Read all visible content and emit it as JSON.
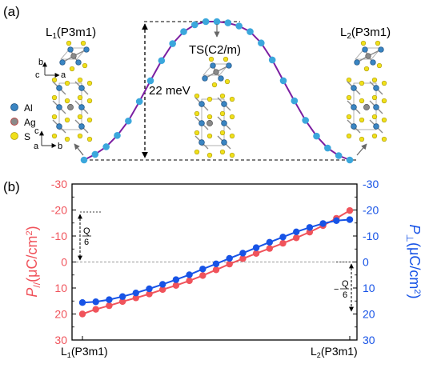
{
  "chart_data": [
    {
      "type": "line",
      "panel_label": "(a)",
      "x": [
        0,
        1,
        2,
        3,
        4,
        5,
        6,
        7,
        8,
        9,
        10,
        11,
        12,
        13,
        14,
        15,
        16,
        17,
        18,
        19,
        20,
        21,
        22,
        23,
        24
      ],
      "series": [
        {
          "name": "",
          "color": "#7b1fa2",
          "marker_color": "#3ba7dc",
          "values": [
            0.0,
            0.9,
            2.1,
            3.9,
            6.2,
            9.3,
            12.6,
            15.8,
            18.5,
            20.4,
            21.5,
            22.0,
            22.0,
            21.8,
            21.3,
            20.4,
            18.6,
            15.9,
            12.6,
            9.4,
            6.3,
            3.8,
            1.9,
            0.7,
            0.0
          ]
        }
      ],
      "ylim": [
        0,
        22
      ],
      "title": "",
      "xlabel": "",
      "ylabel": "",
      "annotations": {
        "barrier": "22 meV",
        "left_state": "L1(P3m1)",
        "transition_state": "TS(C2/m)",
        "right_state": "L2(P3m1)"
      },
      "legend": [
        {
          "label": "Al",
          "color": "#3a85c2"
        },
        {
          "label": "Ag",
          "color": "#8a8a8a"
        },
        {
          "label": "S",
          "color": "#f0e01a"
        }
      ],
      "axis_letters": {
        "top_b": "b",
        "top_c": "c",
        "top_a": "a",
        "bot_c": "c",
        "bot_a": "a",
        "bot_b": "b"
      }
    },
    {
      "type": "line",
      "panel_label": "(b)",
      "categories": [
        "L1(P3m1)",
        "L2(P3m1)"
      ],
      "x": [
        0,
        1,
        2,
        3,
        4,
        5,
        6,
        7,
        8,
        9,
        10,
        11,
        12,
        13,
        14,
        15,
        16,
        17,
        18,
        19,
        20
      ],
      "series": [
        {
          "name": "P∥",
          "axis": "left",
          "color": "#f0535b",
          "values": [
            20.0,
            18.2,
            16.8,
            15.2,
            13.8,
            12.3,
            10.6,
            9.0,
            7.2,
            5.2,
            3.0,
            0.8,
            -1.3,
            -3.3,
            -5.2,
            -7.2,
            -9.3,
            -11.5,
            -14.0,
            -16.8,
            -19.8
          ]
        },
        {
          "name": "P⊥",
          "axis": "right",
          "color": "#1753e6",
          "values": [
            15.6,
            15.3,
            14.5,
            13.3,
            11.9,
            10.3,
            8.6,
            6.8,
            4.9,
            2.7,
            0.7,
            -1.4,
            -3.4,
            -5.5,
            -7.6,
            -9.6,
            -11.6,
            -13.3,
            -14.8,
            -15.9,
            -16.3
          ]
        }
      ],
      "ylim_left": [
        -30,
        30
      ],
      "ylim_right": [
        30,
        -30
      ],
      "yticks_left": [
        "30",
        "20",
        "10",
        "0",
        "-10",
        "-20",
        "-30"
      ],
      "yticks_right": [
        "-30",
        "-20",
        "-10",
        "0",
        "10",
        "20",
        "30"
      ],
      "ylabel_left": "P//(μC/cm²)",
      "ylabel_right": "P⊥(μC/cm²)",
      "annotations": {
        "q_left_num": "Q",
        "q_left_den": "6",
        "q_right_minus": "−",
        "q_right_num": "Q",
        "q_right_den": "6"
      }
    }
  ]
}
